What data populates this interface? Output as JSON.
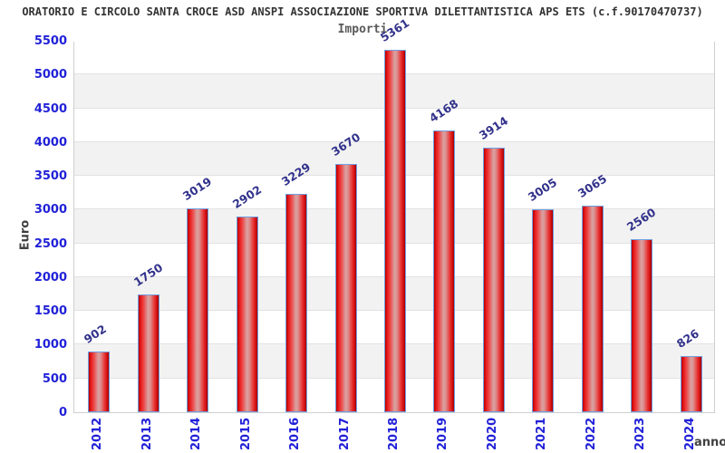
{
  "header": {
    "title": "ORATORIO E CIRCOLO SANTA CROCE ASD ANSPI ASSOCIAZIONE SPORTIVA DILETTANTISTICA APS ETS (c.f.90170470737)",
    "subtitle": "Importi"
  },
  "chart_data": {
    "type": "bar",
    "title": "Importi",
    "categories": [
      "2012",
      "2013",
      "2014",
      "2015",
      "2016",
      "2017",
      "2018",
      "2019",
      "2020",
      "2021",
      "2022",
      "2023",
      "2024"
    ],
    "values": [
      902,
      1750,
      3019,
      2902,
      3229,
      3670,
      5361,
      4168,
      3914,
      3005,
      3065,
      2560,
      826
    ],
    "xlabel": "anno",
    "ylabel": "Euro",
    "ylim": [
      0,
      5500
    ],
    "ytick_step": 500,
    "yticks": [
      0,
      500,
      1000,
      1500,
      2000,
      2500,
      3000,
      3500,
      4000,
      4500,
      5000,
      5500
    ],
    "grid": "horizontal gridlines with alternating gray bands",
    "legend": "none",
    "colors": {
      "bar_edge": "#d01010",
      "bar_center_highlight": "#d9a3a3",
      "bar_border": "#6f9fe0",
      "value_label": "#32328c",
      "axis_tick_label": "#2121d8",
      "band_fill": "#f2f2f2",
      "gridline": "#e2e2e2",
      "plot_border": "#cfcfcf",
      "title_text": "#333333",
      "axis_title_text": "#404040"
    }
  }
}
